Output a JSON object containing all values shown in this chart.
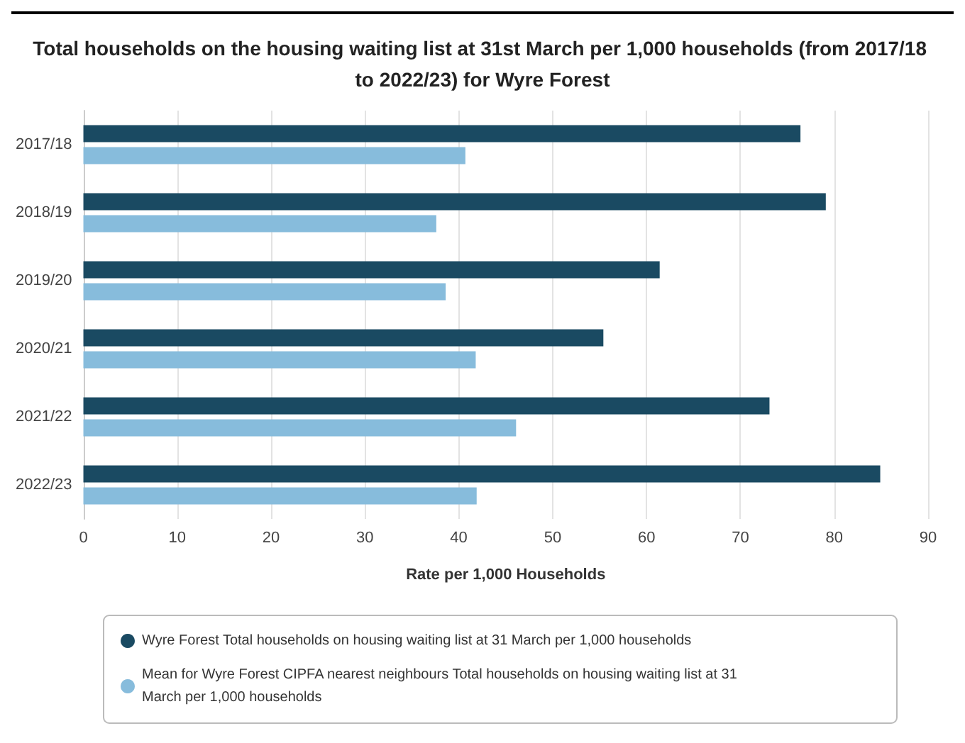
{
  "chart_data": {
    "type": "bar",
    "orientation": "horizontal",
    "title": "Total households on the housing waiting list at 31st March per 1,000 households (from 2017/18 to 2022/23) for Wyre Forest",
    "categories": [
      "2017/18",
      "2018/19",
      "2019/20",
      "2020/21",
      "2021/22",
      "2022/23"
    ],
    "series": [
      {
        "name": "Wyre Forest Total households on housing waiting list at 31 March per 1,000 households",
        "color": "#1a4a62",
        "values": [
          76.4,
          79.1,
          61.4,
          55.4,
          73.1,
          84.9
        ]
      },
      {
        "name": "Mean for Wyre Forest CIPFA nearest neighbours Total households on housing waiting list at 31 March per 1,000 households",
        "color": "#87bcdc",
        "values": [
          40.7,
          37.6,
          38.6,
          41.8,
          46.1,
          41.9
        ]
      }
    ],
    "xlabel": "Rate per 1,000 Households",
    "xlim": [
      0,
      90
    ],
    "xticks": [
      0,
      10,
      20,
      30,
      40,
      50,
      60,
      70,
      80,
      90
    ],
    "grid": "x",
    "legend": "bottom"
  }
}
